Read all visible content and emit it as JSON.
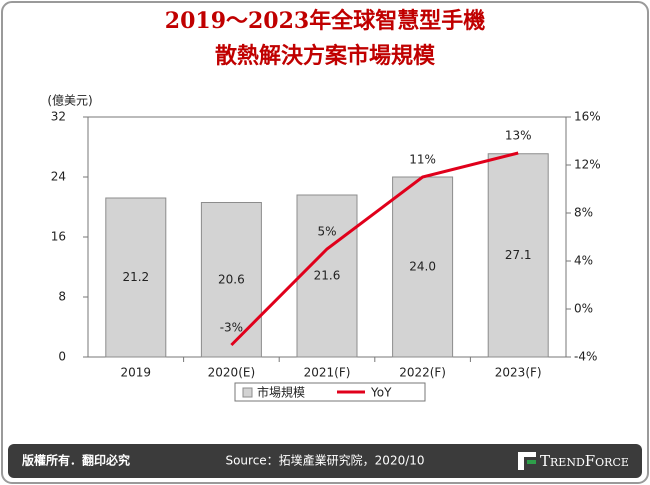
{
  "chart_data": {
    "type": "bar-line",
    "title": [
      "2019～2023年全球智慧型手機",
      "散熱解決方案市場規模"
    ],
    "y_axis_label": "(億美元)",
    "categories": [
      "2019",
      "2020(E)",
      "2021(F)",
      "2022(F)",
      "2023(F)"
    ],
    "series": [
      {
        "name": "市場規模",
        "type": "bar",
        "color": "#d3d3d3",
        "values": [
          21.2,
          20.6,
          21.6,
          24.0,
          27.1
        ],
        "value_labels": [
          "21.2",
          "20.6",
          "21.6",
          "24.0",
          "27.1"
        ]
      },
      {
        "name": "YoY",
        "type": "line",
        "axis": "y2",
        "color": "#e0001b",
        "values": [
          null,
          -3,
          5,
          11,
          13
        ],
        "value_labels": [
          null,
          "-3%",
          "5%",
          "11%",
          "13%"
        ]
      }
    ],
    "ylim": [
      0,
      32
    ],
    "yticks": [
      0,
      8,
      16,
      24,
      32
    ],
    "y2lim": [
      -4,
      16
    ],
    "y2ticks": [
      {
        "value": -4,
        "label": "-4%"
      },
      {
        "value": 0,
        "label": "0%"
      },
      {
        "value": 4,
        "label": "4%"
      },
      {
        "value": 8,
        "label": "8%"
      },
      {
        "value": 12,
        "label": "12%"
      },
      {
        "value": 16,
        "label": "16%"
      }
    ],
    "grid": false,
    "legend": "bottom"
  },
  "footer": {
    "copyright": "版權所有．翻印必究",
    "source": "Source：拓墣產業研究院，2020/10",
    "logo": "TrendForce"
  }
}
